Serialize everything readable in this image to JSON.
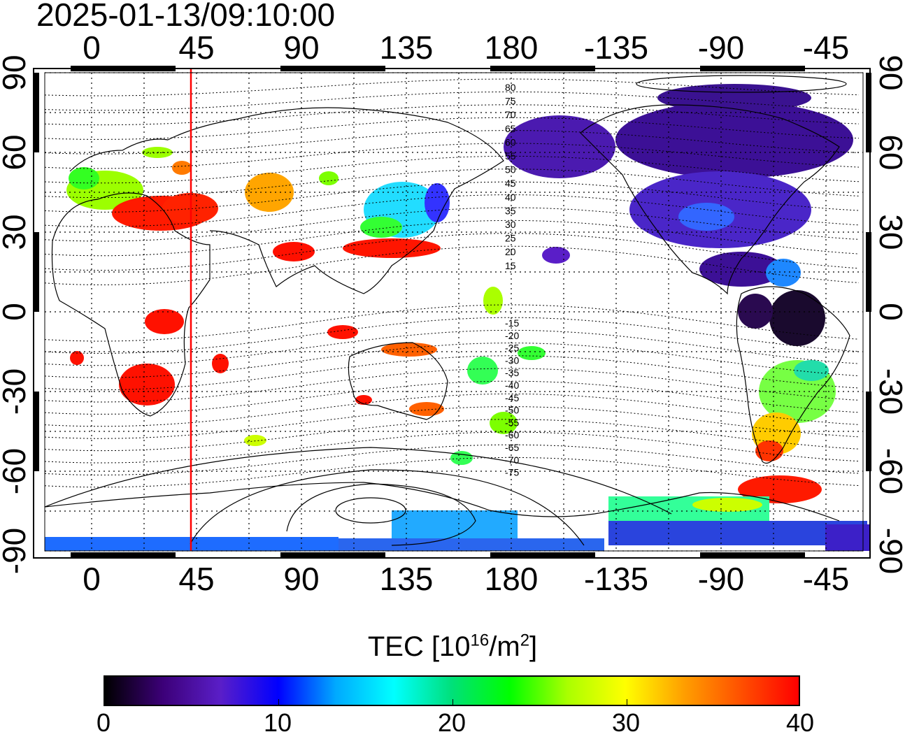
{
  "timestamp": "2025-01-13/09:10:00",
  "longitude_labels": [
    "0",
    "45",
    "90",
    "135",
    "180",
    "-135",
    "-90",
    "-45"
  ],
  "latitude_labels": [
    "90",
    "60",
    "30",
    "0",
    "-30",
    "-60",
    "-90"
  ],
  "contour_labels_north": [
    "80",
    "75",
    "70",
    "65",
    "60",
    "55",
    "50",
    "45",
    "40",
    "35",
    "30",
    "25",
    "20",
    "15"
  ],
  "contour_labels_south": [
    "-15",
    "-20",
    "-25",
    "-30",
    "-35",
    "-40",
    "-45",
    "-50",
    "-55",
    "-60",
    "-65",
    "-70",
    "-75"
  ],
  "colorbar": {
    "title_main": "TEC  [10",
    "title_exp1": "16",
    "title_mid": "/m",
    "title_exp2": "2",
    "title_end": "]",
    "min": 0,
    "max": 40,
    "tick_labels": [
      "0",
      "10",
      "20",
      "30",
      "40"
    ],
    "colors": [
      "#000000",
      "#3c0078",
      "#5a1ec8",
      "#0000ff",
      "#00aaff",
      "#00ffff",
      "#00e07a",
      "#00ff00",
      "#aaff00",
      "#ffff00",
      "#ffa000",
      "#ff5000",
      "#ff0000"
    ]
  },
  "meridian_marker": {
    "longitude": 45,
    "color": "#ff0000"
  }
}
